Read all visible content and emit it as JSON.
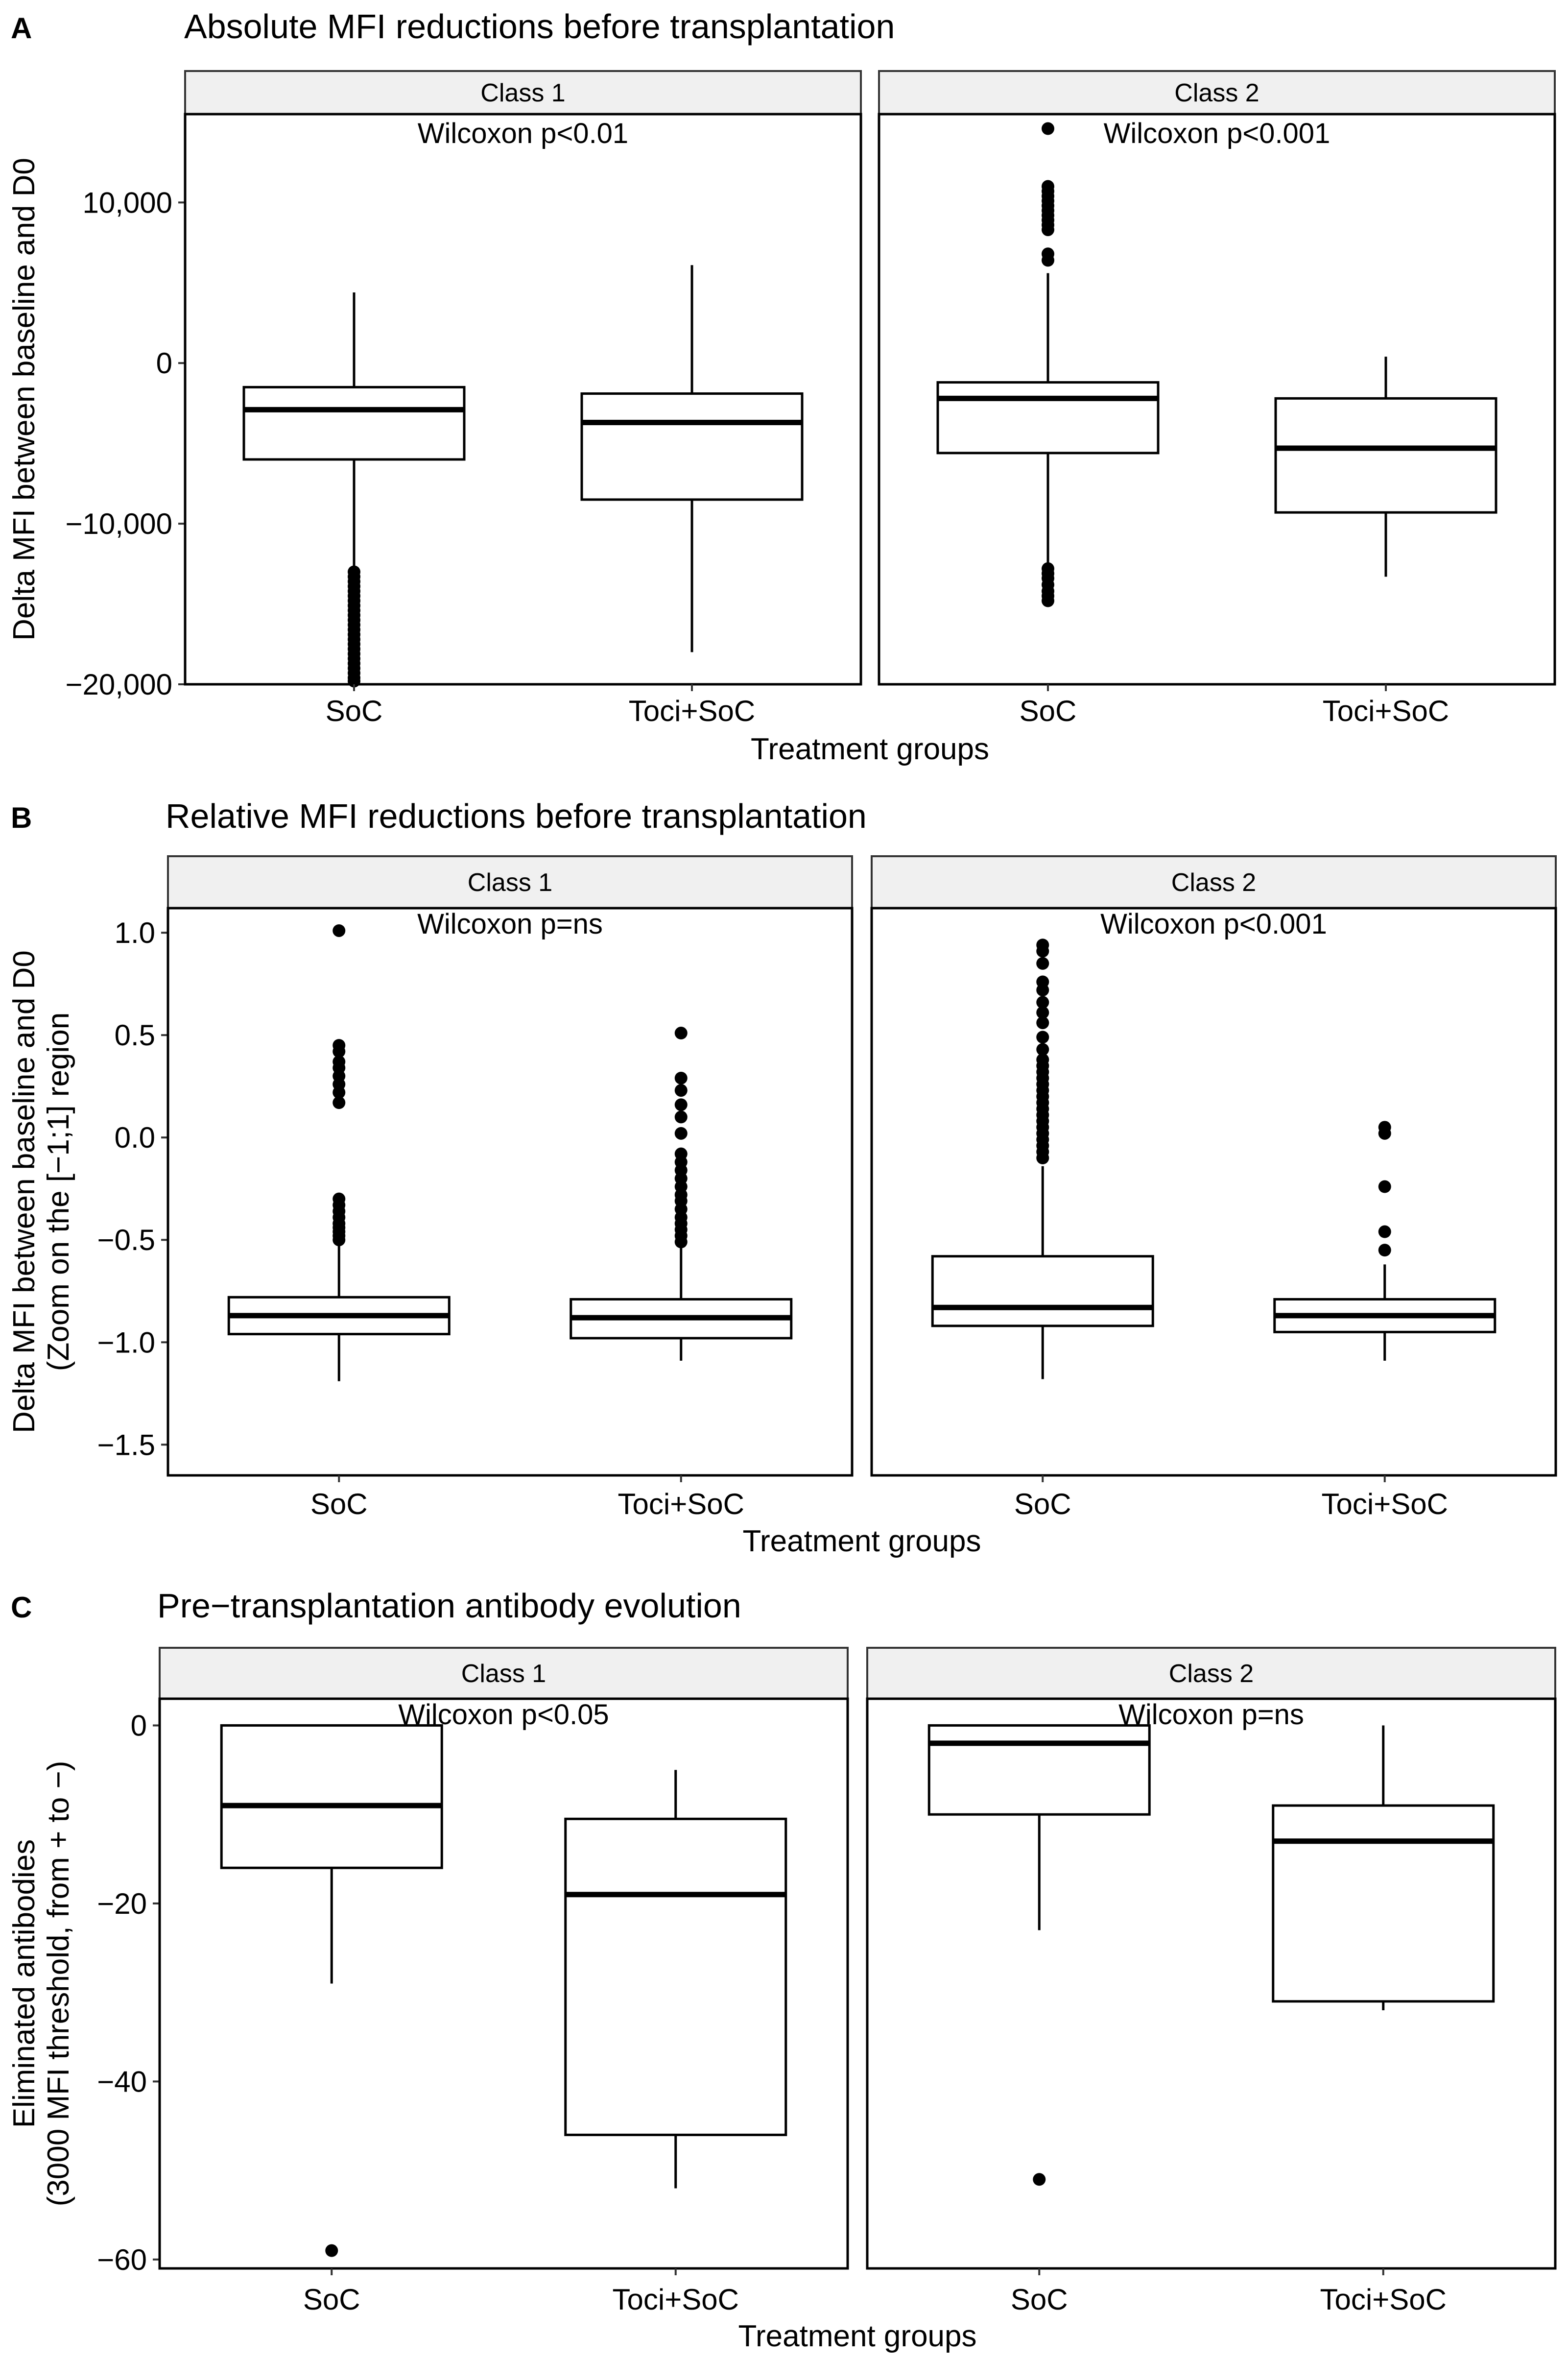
{
  "chart_data": [
    {
      "type": "box",
      "panel_label": "A",
      "title": "Absolute MFI reductions before transplantation",
      "xlabel": "Treatment groups",
      "ylabel": [
        "Delta MFI between baseline and D0"
      ],
      "ylim": [
        -20000,
        15500
      ],
      "yticks": [
        -20000,
        -10000,
        0,
        10000
      ],
      "ytick_labels": [
        "−20,000",
        "−10,000",
        "0",
        "10,000"
      ],
      "categories": [
        "SoC",
        "Toci+SoC"
      ],
      "facets": [
        {
          "strip": "Class 1",
          "annotation": "Wilcoxon p<0.01",
          "boxes": [
            {
              "group": "SoC",
              "whisker_low": -12800,
              "q1": -6000,
              "median": -2900,
              "q3": -1500,
              "whisker_high": 4400,
              "outliers": [
                -13000,
                -13300,
                -13600,
                -13900,
                -14200,
                -14500,
                -14800,
                -15100,
                -15400,
                -15700,
                -16000,
                -16300,
                -16600,
                -16900,
                -17200,
                -17500,
                -17800,
                -18100,
                -18400,
                -18700,
                -19000,
                -19300,
                -19600,
                -19800
              ]
            },
            {
              "group": "Toci+SoC",
              "whisker_low": -18000,
              "q1": -8500,
              "median": -3700,
              "q3": -1900,
              "whisker_high": 6100,
              "outliers": []
            }
          ]
        },
        {
          "strip": "Class 2",
          "annotation": "Wilcoxon p<0.001",
          "boxes": [
            {
              "group": "SoC",
              "whisker_low": -12500,
              "q1": -5600,
              "median": -2200,
              "q3": -1200,
              "whisker_high": 5600,
              "outliers": [
                14600,
                11000,
                10700,
                10400,
                10100,
                9800,
                9500,
                9200,
                8900,
                8600,
                8300,
                6800,
                6400,
                -12800,
                -13100,
                -13400,
                -13800,
                -14200,
                -14500,
                -14800
              ]
            },
            {
              "group": "Toci+SoC",
              "whisker_low": -13300,
              "q1": -9300,
              "median": -5300,
              "q3": -2200,
              "whisker_high": 400,
              "outliers": []
            }
          ]
        }
      ]
    },
    {
      "type": "box",
      "panel_label": "B",
      "title": "Relative MFI reductions before transplantation",
      "xlabel": "Treatment groups",
      "ylabel": [
        "Delta MFI between baseline and D0",
        "(Zoom on the [−1;1] region"
      ],
      "ylim": [
        -1.65,
        1.12
      ],
      "yticks": [
        -1.5,
        -1.0,
        -0.5,
        0.0,
        0.5,
        1.0
      ],
      "ytick_labels": [
        "−1.5",
        "−1.0",
        "−0.5",
        "0.0",
        "0.5",
        "1.0"
      ],
      "categories": [
        "SoC",
        "Toci+SoC"
      ],
      "facets": [
        {
          "strip": "Class 1",
          "annotation": "Wilcoxon p=ns",
          "boxes": [
            {
              "group": "SoC",
              "whisker_low": -1.19,
              "q1": -0.96,
              "median": -0.87,
              "q3": -0.78,
              "whisker_high": -0.52,
              "outliers": [
                1.01,
                0.45,
                0.42,
                0.37,
                0.34,
                0.3,
                0.26,
                0.22,
                0.17,
                -0.3,
                -0.33,
                -0.36,
                -0.39,
                -0.42,
                -0.44,
                -0.46,
                -0.48,
                -0.5
              ]
            },
            {
              "group": "Toci+SoC",
              "whisker_low": -1.09,
              "q1": -0.98,
              "median": -0.88,
              "q3": -0.79,
              "whisker_high": -0.54,
              "outliers": [
                0.51,
                0.29,
                0.23,
                0.16,
                0.1,
                0.02,
                -0.08,
                -0.12,
                -0.16,
                -0.2,
                -0.24,
                -0.28,
                -0.31,
                -0.35,
                -0.39,
                -0.42,
                -0.45,
                -0.48,
                -0.51
              ]
            }
          ]
        },
        {
          "strip": "Class 2",
          "annotation": "Wilcoxon p<0.001",
          "boxes": [
            {
              "group": "SoC",
              "whisker_low": -1.18,
              "q1": -0.92,
              "median": -0.83,
              "q3": -0.58,
              "whisker_high": -0.14,
              "outliers": [
                0.94,
                0.91,
                0.85,
                0.76,
                0.72,
                0.66,
                0.61,
                0.56,
                0.49,
                0.43,
                0.38,
                0.35,
                0.32,
                0.29,
                0.26,
                0.23,
                0.2,
                0.17,
                0.14,
                0.11,
                0.08,
                0.05,
                0.02,
                -0.01,
                -0.04,
                -0.07,
                -0.1
              ]
            },
            {
              "group": "Toci+SoC",
              "whisker_low": -1.09,
              "q1": -0.95,
              "median": -0.87,
              "q3": -0.79,
              "whisker_high": -0.62,
              "outliers": [
                0.05,
                0.02,
                -0.24,
                -0.46,
                -0.55
              ]
            }
          ]
        }
      ]
    },
    {
      "type": "box",
      "panel_label": "C",
      "title": "Pre−transplantation antibody evolution",
      "xlabel": "Treatment groups",
      "ylabel": [
        "Eliminated antibodies",
        "(3000 MFI threshold, from + to −)"
      ],
      "ylim": [
        -61,
        3
      ],
      "yticks": [
        -60,
        -40,
        -20,
        0
      ],
      "ytick_labels": [
        "−60",
        "−40",
        "−20",
        "0"
      ],
      "categories": [
        "SoC",
        "Toci+SoC"
      ],
      "facets": [
        {
          "strip": "Class 1",
          "annotation": "Wilcoxon p<0.05",
          "boxes": [
            {
              "group": "SoC",
              "whisker_low": -29,
              "q1": -16,
              "median": -9,
              "q3": 0,
              "whisker_high": 0,
              "outliers": [
                -59
              ]
            },
            {
              "group": "Toci+SoC",
              "whisker_low": -52,
              "q1": -46,
              "median": -19,
              "q3": -10.5,
              "whisker_high": -5,
              "outliers": []
            }
          ]
        },
        {
          "strip": "Class 2",
          "annotation": "Wilcoxon p=ns",
          "boxes": [
            {
              "group": "SoC",
              "whisker_low": -23,
              "q1": -10,
              "median": -2,
              "q3": 0,
              "whisker_high": 0,
              "outliers": [
                -51
              ]
            },
            {
              "group": "Toci+SoC",
              "whisker_low": -32,
              "q1": -31,
              "median": -13,
              "q3": -9,
              "whisker_high": 0,
              "outliers": []
            }
          ]
        }
      ]
    }
  ]
}
